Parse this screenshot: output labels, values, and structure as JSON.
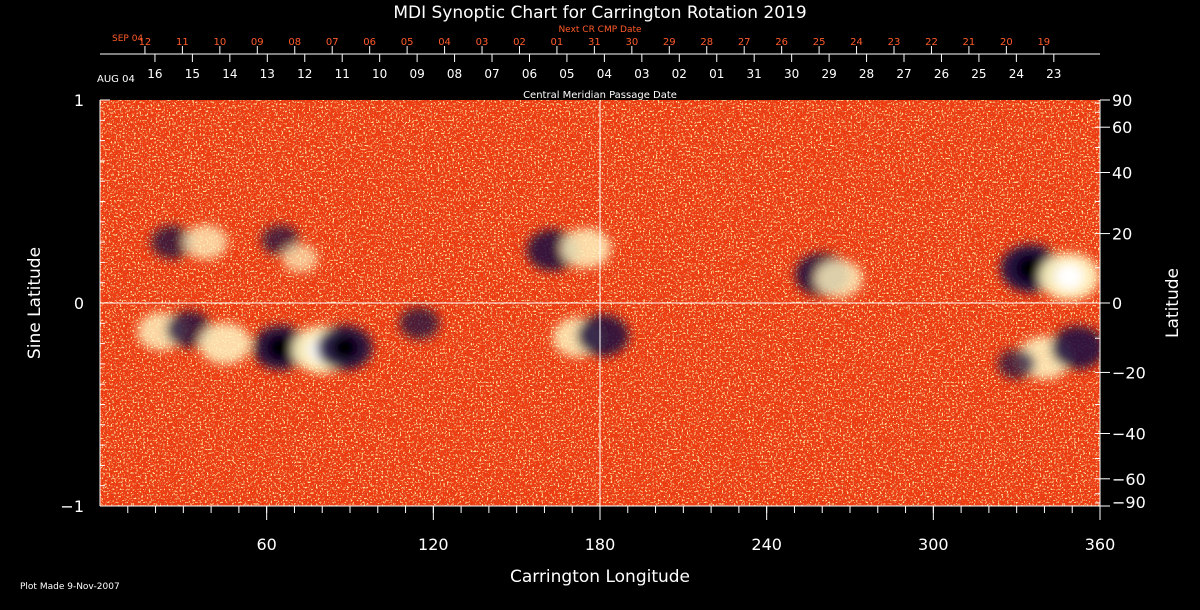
{
  "chart_data": {
    "type": "heatmap",
    "title": "MDI Synoptic Chart for Carrington Rotation 2019",
    "xlabel": "Carrington Longitude",
    "ylabel_left": "Sine Latitude",
    "ylabel_right": "Latitude",
    "xlim": [
      0,
      360
    ],
    "ylim": [
      -1,
      1
    ],
    "x_ticks": [
      60,
      120,
      180,
      240,
      300,
      360
    ],
    "y_ticks_left": [
      {
        "value": 1,
        "label": "1"
      },
      {
        "value": 0,
        "label": "0"
      },
      {
        "value": -1,
        "label": "−1"
      }
    ],
    "y_ticks_right": [
      {
        "value": 90,
        "label": "90"
      },
      {
        "value": 60,
        "label": "60"
      },
      {
        "value": 40,
        "label": "40"
      },
      {
        "value": 20,
        "label": "20"
      },
      {
        "value": 0,
        "label": "0"
      },
      {
        "value": -20,
        "label": "−20"
      },
      {
        "value": -40,
        "label": "−40"
      },
      {
        "value": -60,
        "label": "−60"
      },
      {
        "value": -90,
        "label": "−90"
      }
    ],
    "gridlines": {
      "vertical_at_longitude": 180,
      "horizontal_at_sine_latitude": 0
    },
    "top_axis_current": {
      "title": "Central Meridian Passage Date",
      "start_label": "AUG 04",
      "dates": [
        "16",
        "15",
        "14",
        "13",
        "12",
        "11",
        "10",
        "09",
        "08",
        "07",
        "06",
        "05",
        "04",
        "03",
        "02",
        "01",
        "31",
        "30",
        "29",
        "28",
        "27",
        "26",
        "25",
        "24",
        "23"
      ],
      "color": "#ffffff"
    },
    "top_axis_next": {
      "title": "Next CR CMP Date",
      "start_label": "SEP 04",
      "dates": [
        "12",
        "11",
        "10",
        "09",
        "08",
        "07",
        "06",
        "05",
        "04",
        "03",
        "02",
        "01",
        "31",
        "30",
        "29",
        "28",
        "27",
        "26",
        "25",
        "24",
        "23",
        "22",
        "21",
        "20",
        "19"
      ],
      "color": "#ff5a2a"
    },
    "colors": {
      "background_field": "#ee3c10",
      "positive_polarity": "#fff4c0",
      "negative_polarity": "#1c1040",
      "axis": "#ffffff",
      "accent": "#ff5a2a"
    },
    "regions": [
      {
        "polarity": "negative",
        "longitude": 26,
        "sine_latitude": 0.3,
        "strength": 0.55
      },
      {
        "polarity": "positive",
        "longitude": 38,
        "sine_latitude": 0.3,
        "strength": 0.6
      },
      {
        "polarity": "negative",
        "longitude": 65,
        "sine_latitude": 0.31,
        "strength": 0.45
      },
      {
        "polarity": "positive",
        "longitude": 72,
        "sine_latitude": 0.22,
        "strength": 0.4
      },
      {
        "polarity": "negative",
        "longitude": 163,
        "sine_latitude": 0.26,
        "strength": 0.8
      },
      {
        "polarity": "positive",
        "longitude": 175,
        "sine_latitude": 0.27,
        "strength": 0.75
      },
      {
        "polarity": "negative",
        "longitude": 260,
        "sine_latitude": 0.14,
        "strength": 0.85
      },
      {
        "polarity": "positive",
        "longitude": 266,
        "sine_latitude": 0.12,
        "strength": 0.7
      },
      {
        "polarity": "negative",
        "longitude": 335,
        "sine_latitude": 0.17,
        "strength": 1.0
      },
      {
        "polarity": "positive",
        "longitude": 349,
        "sine_latitude": 0.13,
        "strength": 1.0
      },
      {
        "polarity": "positive",
        "longitude": 22,
        "sine_latitude": -0.14,
        "strength": 0.7
      },
      {
        "polarity": "negative",
        "longitude": 32,
        "sine_latitude": -0.13,
        "strength": 0.65
      },
      {
        "polarity": "positive",
        "longitude": 45,
        "sine_latitude": -0.2,
        "strength": 0.8
      },
      {
        "polarity": "negative",
        "longitude": 65,
        "sine_latitude": -0.22,
        "strength": 0.9
      },
      {
        "polarity": "positive",
        "longitude": 80,
        "sine_latitude": -0.23,
        "strength": 1.0
      },
      {
        "polarity": "negative",
        "longitude": 88,
        "sine_latitude": -0.22,
        "strength": 0.9
      },
      {
        "polarity": "negative",
        "longitude": 115,
        "sine_latitude": -0.1,
        "strength": 0.5
      },
      {
        "polarity": "positive",
        "longitude": 172,
        "sine_latitude": -0.17,
        "strength": 0.75
      },
      {
        "polarity": "negative",
        "longitude": 181,
        "sine_latitude": -0.16,
        "strength": 0.8
      },
      {
        "polarity": "positive",
        "longitude": 340,
        "sine_latitude": -0.27,
        "strength": 0.85
      },
      {
        "polarity": "negative",
        "longitude": 352,
        "sine_latitude": -0.22,
        "strength": 0.85
      },
      {
        "polarity": "negative",
        "longitude": 330,
        "sine_latitude": -0.3,
        "strength": 0.45
      }
    ]
  },
  "footer": {
    "plot_made": "Plot Made  9-Nov-2007"
  }
}
